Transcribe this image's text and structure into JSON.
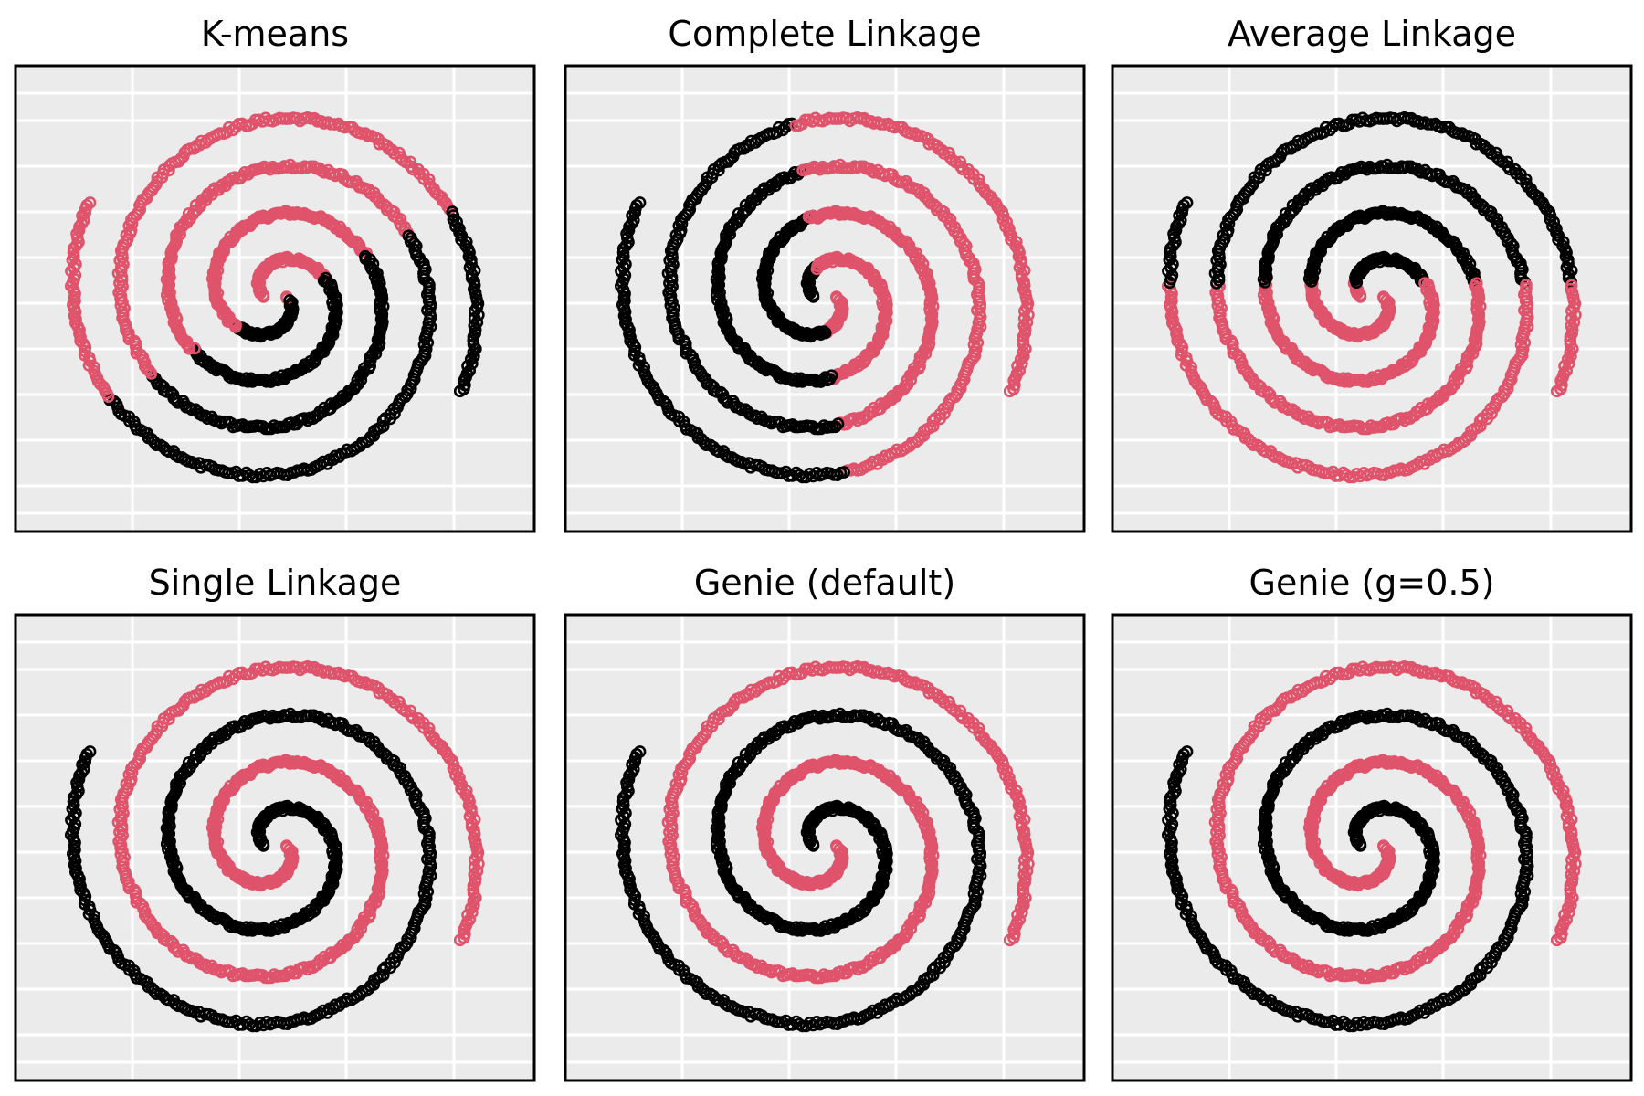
{
  "colors": {
    "pink": "#df536b",
    "black": "#000000",
    "panel_bg": "#ebebeb",
    "grid": "#ffffff"
  },
  "chart_data": [
    {
      "type": "scatter",
      "title": "K-means",
      "assign": "kmeans",
      "grid": true,
      "xlabel": "",
      "ylabel": ""
    },
    {
      "type": "scatter",
      "title": "Complete Linkage",
      "assign": "complete",
      "grid": true,
      "xlabel": "",
      "ylabel": ""
    },
    {
      "type": "scatter",
      "title": "Average Linkage",
      "assign": "average",
      "grid": true,
      "xlabel": "",
      "ylabel": ""
    },
    {
      "type": "scatter",
      "title": "Single Linkage",
      "assign": "spiral",
      "grid": true,
      "xlabel": "",
      "ylabel": ""
    },
    {
      "type": "scatter",
      "title": "Genie (default)",
      "assign": "spiral",
      "grid": true,
      "xlabel": "",
      "ylabel": ""
    },
    {
      "type": "scatter",
      "title": "Genie (g=0.5)",
      "assign": "spiral",
      "grid": true,
      "xlabel": "",
      "ylabel": ""
    }
  ]
}
